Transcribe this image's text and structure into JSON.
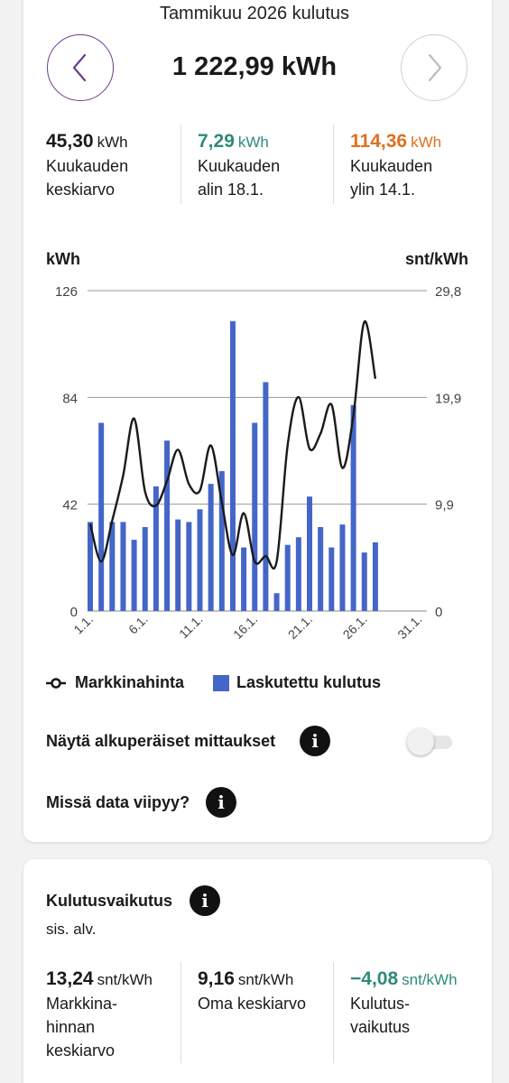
{
  "header": {
    "month_title": "Tammikuu 2026 kulutus",
    "total": "1 222,99 kWh",
    "prev_icon": "chevron-left-icon",
    "next_icon": "chevron-right-icon"
  },
  "stats": [
    {
      "value": "45,30",
      "unit": "kWh",
      "line1": "Kuukauden",
      "line2": "keskiarvo",
      "color": "#1a1a1a"
    },
    {
      "value": "7,29",
      "unit": "kWh",
      "line1": "Kuukauden",
      "line2": "alin 18.1.",
      "color": "#2e8b7a"
    },
    {
      "value": "114,36",
      "unit": "kWh",
      "line1": "Kuukauden",
      "line2": "ylin 14.1.",
      "color": "#e0701e"
    }
  ],
  "chart_data": {
    "type": "bar",
    "left_axis_label": "kWh",
    "right_axis_label": "snt/kWh",
    "left_ticks": [
      "126",
      "84",
      "42",
      "0"
    ],
    "right_ticks": [
      "29,8",
      "19,9",
      "9,9",
      "0"
    ],
    "ylim_left": [
      0,
      126
    ],
    "ylim_right": [
      0,
      29.8
    ],
    "x_ticks": [
      "1.1.",
      "6.1.",
      "11.1.",
      "16.1.",
      "21.1.",
      "26.1.",
      "31.1."
    ],
    "series": [
      {
        "name": "Laskutettu kulutus",
        "type": "bar",
        "color": "#4466c8",
        "values": [
          35,
          74,
          35,
          35,
          28,
          33,
          49,
          67,
          36,
          35,
          40,
          50,
          55,
          114,
          25,
          74,
          90,
          7,
          26,
          29,
          45,
          33,
          25,
          34,
          81,
          23,
          27
        ]
      },
      {
        "name": "Markkinahinta",
        "type": "line",
        "color": "#1a1a1a",
        "values": [
          8.1,
          4.6,
          8.4,
          12.6,
          17.9,
          11.1,
          9.8,
          12.1,
          15.0,
          11.8,
          11.2,
          15.4,
          10.1,
          5.2,
          9.1,
          4.6,
          5.1,
          4.6,
          15.4,
          19.9,
          15.1,
          16.5,
          19.2,
          13.3,
          18.2,
          26.9,
          21.6
        ]
      }
    ],
    "grid": true
  },
  "legend": {
    "line_label": "Markkinahinta",
    "bar_label": "Laskutettu kulutus"
  },
  "options": {
    "show_original_label": "Näytä alkuperäiset mittaukset",
    "data_delay_label": "Missä data viipyy?",
    "info_icon": "info-icon"
  },
  "impact": {
    "title": "Kulutusvaikutus",
    "subtitle": "sis. alv.",
    "stats": [
      {
        "value": "13,24",
        "unit": "snt/kWh",
        "lines": [
          "Markkina-",
          "hinnan",
          "keskiarvo"
        ],
        "color": "#1a1a1a"
      },
      {
        "value": "9,16",
        "unit": "snt/kWh",
        "lines": [
          "Oma keskiarvo"
        ],
        "color": "#1a1a1a"
      },
      {
        "value": "−4,08",
        "unit": "snt/kWh",
        "lines": [
          "Kulutus-",
          "vaikutus"
        ],
        "color": "#2e8b7a"
      }
    ]
  }
}
